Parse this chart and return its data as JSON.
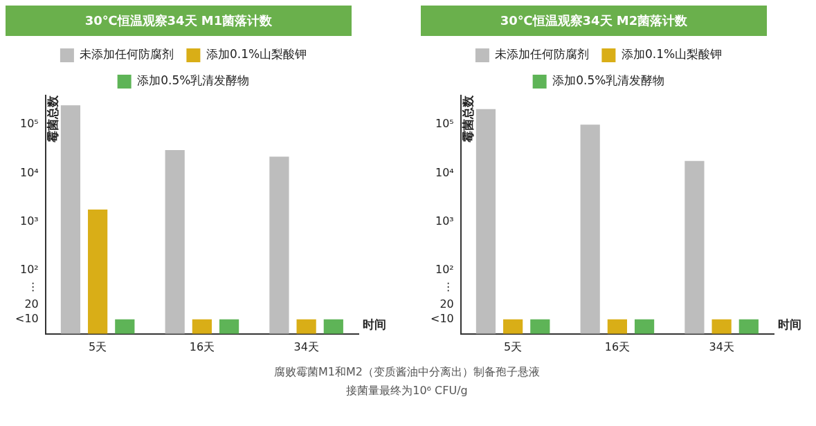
{
  "chart_data": [
    {
      "type": "bar",
      "title": "30℃恒温观察34天 M1菌落计数",
      "ylabel": "霉菌总数",
      "xlabel": "时间",
      "categories": [
        "5天",
        "16天",
        "34天"
      ],
      "legend": "top",
      "grid": false,
      "log": "y",
      "series": [
        {
          "name": "未添加任何防腐剂",
          "color": "#bdbdbd",
          "values": [
            250000,
            30000,
            22000
          ]
        },
        {
          "name": "添加0.1%山梨酸钾",
          "color": "#d9ae17",
          "values": [
            1800,
            10,
            10
          ]
        },
        {
          "name": "添加0.5%乳清发酵物",
          "color": "#5eb457",
          "values": [
            10,
            10,
            10
          ]
        }
      ],
      "ylim": [
        5,
        400000
      ],
      "yticks": [
        {
          "value": 10,
          "label": "<10"
        },
        20,
        {
          "value": 45,
          "label": "⋮"
        },
        {
          "value": 100,
          "label": "10²"
        },
        {
          "value": 1000,
          "label": "10³"
        },
        {
          "value": 10000,
          "label": "10⁴"
        },
        {
          "value": 100000,
          "label": "10⁵"
        }
      ],
      "annotations": [
        "腐败霉菌M1和M2（变质酱油中分离出）制备孢子悬液",
        "接菌量最终为10⁶ CFU/g"
      ]
    },
    {
      "type": "bar",
      "title": "30℃恒温观察34天 M2菌落计数",
      "ylabel": "霉菌总数",
      "xlabel": "时间",
      "categories": [
        "5天",
        "16天",
        "34天"
      ],
      "legend": "top",
      "grid": false,
      "log": "y",
      "series": [
        {
          "name": "未添加任何防腐剂",
          "color": "#bdbdbd",
          "values": [
            210000,
            100000,
            18000
          ]
        },
        {
          "name": "添加0.1%山梨酸钾",
          "color": "#d9ae17",
          "values": [
            10,
            10,
            10
          ]
        },
        {
          "name": "添加0.5%乳清发酵物",
          "color": "#5eb457",
          "values": [
            10,
            10,
            10
          ]
        }
      ],
      "ylim": [
        5,
        400000
      ],
      "yticks": [
        {
          "value": 10,
          "label": "<10"
        },
        20,
        {
          "value": 45,
          "label": "⋮"
        },
        {
          "value": 100,
          "label": "10²"
        },
        {
          "value": 1000,
          "label": "10³"
        },
        {
          "value": 10000,
          "label": "10⁴"
        },
        {
          "value": 100000,
          "label": "10⁵"
        }
      ]
    }
  ]
}
